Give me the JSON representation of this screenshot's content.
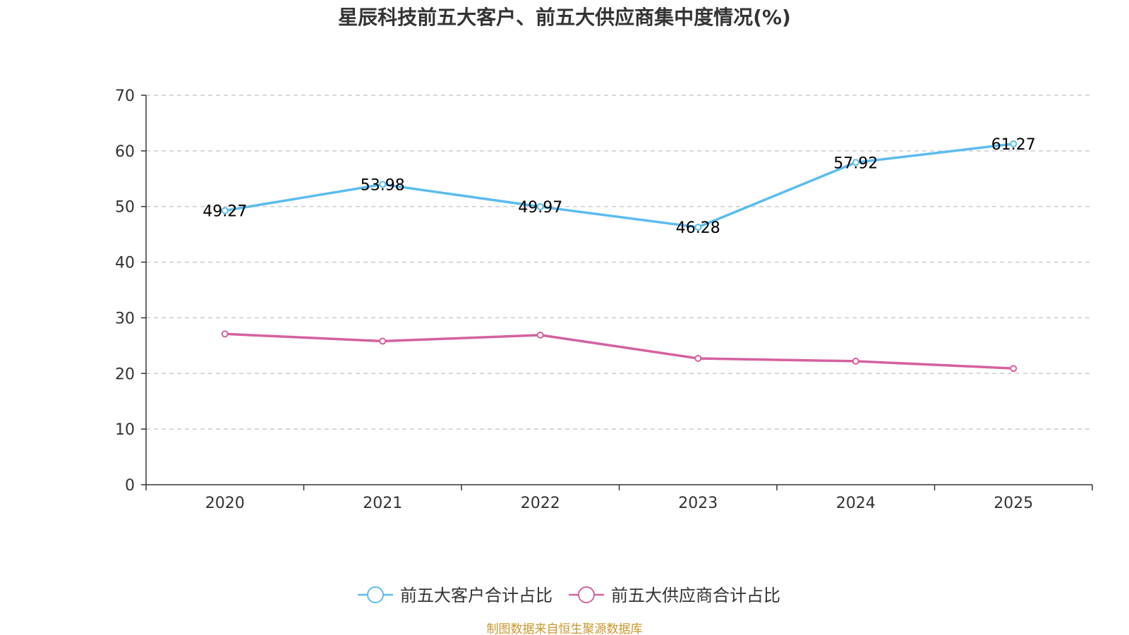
{
  "chart_data": {
    "type": "line",
    "title": "星辰科技前五大客户、前五大供应商集中度情况(%)",
    "categories": [
      "2020",
      "2021",
      "2022",
      "2023",
      "2024",
      "2025"
    ],
    "ylim": [
      0,
      70
    ],
    "yticks": [
      0,
      10,
      20,
      30,
      40,
      50,
      60,
      70
    ],
    "grid": true,
    "legend_position": "bottom-center",
    "series": [
      {
        "name": "前五大客户合计占比",
        "color": "#5bbcf0",
        "show_labels": true,
        "values": [
          49.27,
          53.98,
          49.97,
          46.28,
          57.92,
          61.27
        ]
      },
      {
        "name": "前五大供应商合计占比",
        "color": "#d4619f",
        "show_labels": false,
        "values": [
          27.1,
          25.8,
          26.9,
          22.7,
          22.2,
          20.9
        ]
      }
    ]
  },
  "footer": {
    "source": "制图数据来自恒生聚源数据库",
    "color": "#c8962c"
  }
}
